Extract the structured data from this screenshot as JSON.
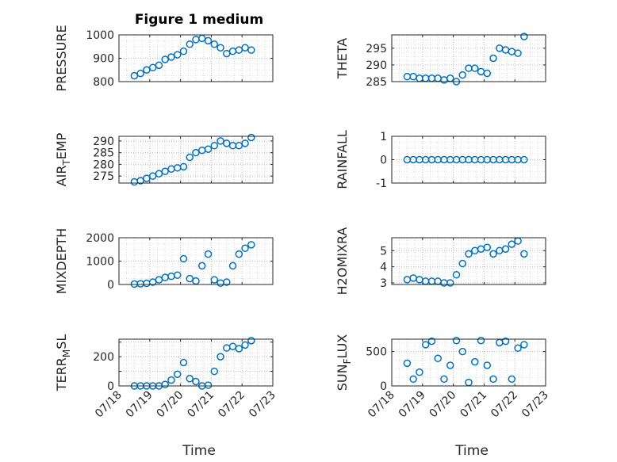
{
  "figure": {
    "title": "Figure 1 medium"
  },
  "chart_data": [
    {
      "type": "scatter",
      "ylabel": "PRESSURE",
      "ylim": [
        800,
        1000
      ],
      "yticks": [
        800,
        900,
        1000
      ],
      "ytick_labels": [
        "800",
        "900",
        "1000"
      ],
      "x": [
        0.5,
        0.7,
        0.9,
        1.1,
        1.3,
        1.5,
        1.7,
        1.9,
        2.1,
        2.3,
        2.5,
        2.7,
        2.9,
        3.1,
        3.3,
        3.5,
        3.7,
        3.9,
        4.1,
        4.3
      ],
      "y": [
        825,
        835,
        850,
        860,
        870,
        895,
        905,
        915,
        930,
        960,
        980,
        985,
        975,
        960,
        945,
        920,
        930,
        935,
        945,
        935
      ]
    },
    {
      "type": "scatter",
      "ylabel": "THETA",
      "ylim": [
        285,
        299
      ],
      "yticks": [
        285,
        290,
        295
      ],
      "ytick_labels": [
        "285",
        "290",
        "295"
      ],
      "x": [
        0.5,
        0.7,
        0.9,
        1.1,
        1.3,
        1.5,
        1.7,
        1.9,
        2.1,
        2.3,
        2.5,
        2.7,
        2.9,
        3.1,
        3.3,
        3.5,
        3.7,
        3.9,
        4.1,
        4.3
      ],
      "y": [
        286.5,
        286.5,
        286,
        286,
        286,
        286,
        285.5,
        286,
        285,
        287,
        289,
        289,
        288,
        287.5,
        292,
        295,
        294.5,
        294,
        293.5,
        298.5
      ]
    },
    {
      "type": "scatter",
      "ylabel": "AIR_TEMP",
      "ylim": [
        272,
        292
      ],
      "yticks": [
        275,
        280,
        285,
        290
      ],
      "ytick_labels": [
        "275",
        "280",
        "285",
        "290"
      ],
      "x": [
        0.5,
        0.7,
        0.9,
        1.1,
        1.3,
        1.5,
        1.7,
        1.9,
        2.1,
        2.3,
        2.5,
        2.7,
        2.9,
        3.1,
        3.3,
        3.5,
        3.7,
        3.9,
        4.1,
        4.3
      ],
      "y": [
        272.5,
        273,
        274,
        275,
        276,
        277,
        278,
        278.5,
        279,
        283,
        285,
        286,
        286.5,
        288,
        290,
        289,
        288,
        288,
        289,
        291.5
      ]
    },
    {
      "type": "scatter",
      "ylabel": "RAINFALL",
      "ylim": [
        -1,
        1
      ],
      "yticks": [
        -1,
        0,
        1
      ],
      "ytick_labels": [
        "-1",
        "0",
        "1"
      ],
      "x": [
        0.5,
        0.7,
        0.9,
        1.1,
        1.3,
        1.5,
        1.7,
        1.9,
        2.1,
        2.3,
        2.5,
        2.7,
        2.9,
        3.1,
        3.3,
        3.5,
        3.7,
        3.9,
        4.1,
        4.3
      ],
      "y": [
        0,
        0,
        0,
        0,
        0,
        0,
        0,
        0,
        0,
        0,
        0,
        0,
        0,
        0,
        0,
        0,
        0,
        0,
        0,
        0
      ]
    },
    {
      "type": "scatter",
      "ylabel": "MIXDEPTH",
      "ylim": [
        0,
        2000
      ],
      "yticks": [
        0,
        1000,
        2000
      ],
      "ytick_labels": [
        "0",
        "1000",
        "2000"
      ],
      "x": [
        0.5,
        0.7,
        0.9,
        1.1,
        1.3,
        1.5,
        1.7,
        1.9,
        2.1,
        2.3,
        2.5,
        2.7,
        2.9,
        3.1,
        3.3,
        3.5,
        3.7,
        3.9,
        4.1,
        4.3
      ],
      "y": [
        20,
        30,
        50,
        100,
        200,
        300,
        350,
        400,
        1100,
        250,
        150,
        800,
        1300,
        200,
        60,
        100,
        800,
        1300,
        1550,
        1700
      ]
    },
    {
      "type": "scatter",
      "ylabel": "H2OMIXRA",
      "ylim": [
        2.9,
        5.8
      ],
      "yticks": [
        3,
        4,
        5
      ],
      "ytick_labels": [
        "3",
        "4",
        "5"
      ],
      "x": [
        0.5,
        0.7,
        0.9,
        1.1,
        1.3,
        1.5,
        1.7,
        1.9,
        2.1,
        2.3,
        2.5,
        2.7,
        2.9,
        3.1,
        3.3,
        3.5,
        3.7,
        3.9,
        4.1,
        4.3
      ],
      "y": [
        3.2,
        3.3,
        3.2,
        3.1,
        3.1,
        3.1,
        3.0,
        3.0,
        3.5,
        4.2,
        4.8,
        5.0,
        5.1,
        5.2,
        4.8,
        5.0,
        5.1,
        5.4,
        5.6,
        4.8
      ]
    },
    {
      "type": "scatter",
      "ylabel": "TERR_MSL",
      "ylim": [
        0,
        320
      ],
      "yticks": [
        0,
        100,
        200,
        300
      ],
      "ytick_labels": [
        "0",
        "",
        "200",
        ""
      ],
      "x": [
        0.5,
        0.7,
        0.9,
        1.1,
        1.3,
        1.5,
        1.7,
        1.9,
        2.1,
        2.3,
        2.5,
        2.7,
        2.9,
        3.1,
        3.3,
        3.5,
        3.7,
        3.9,
        4.1,
        4.3
      ],
      "y": [
        0,
        0,
        0,
        0,
        0,
        10,
        40,
        80,
        160,
        50,
        30,
        0,
        5,
        100,
        200,
        260,
        270,
        255,
        280,
        310
      ]
    },
    {
      "type": "scatter",
      "ylabel": "SUN_FLUX",
      "ylim": [
        0,
        680
      ],
      "yticks": [
        0,
        500
      ],
      "ytick_labels": [
        "0",
        "500"
      ],
      "x": [
        0.5,
        0.7,
        0.9,
        1.1,
        1.3,
        1.5,
        1.7,
        1.9,
        2.1,
        2.3,
        2.5,
        2.7,
        2.9,
        3.1,
        3.3,
        3.5,
        3.7,
        3.9,
        4.1,
        4.3
      ],
      "y": [
        330,
        100,
        200,
        600,
        650,
        400,
        100,
        300,
        660,
        500,
        50,
        350,
        660,
        300,
        100,
        630,
        650,
        100,
        550,
        600
      ]
    }
  ],
  "axes": {
    "xlabel": "Time",
    "xlim": [
      0,
      5
    ],
    "xtick_labels": [
      "07/18",
      "07/19",
      "07/20",
      "07/21",
      "07/22",
      "07/23"
    ]
  }
}
